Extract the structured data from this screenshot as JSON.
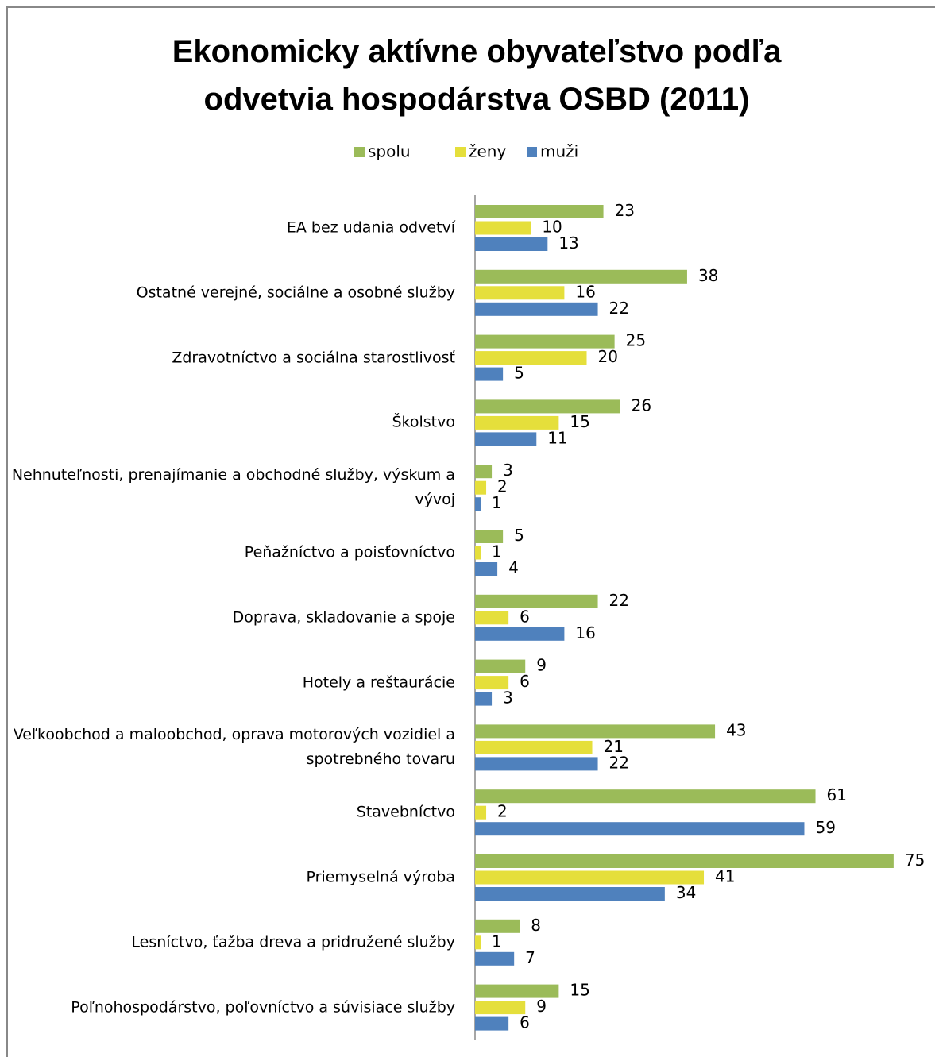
{
  "chart_data": {
    "type": "bar",
    "orientation": "horizontal",
    "title": "Ekonomicky aktívne obyvateľstvo podľa odvetvia hospodárstva  OSBD (2011)",
    "categories": [
      "EA bez udania odvetví",
      "Ostatné verejné, sociálne a osobné služby",
      "Zdravotníctvo a sociálna starostlivosť",
      "Školstvo",
      "Nehnuteľnosti, prenajímanie a obchodné služby, výskum a vývoj",
      "Peňažníctvo a poisťovníctvo",
      "Doprava, skladovanie a spoje",
      "Hotely a reštaurácie",
      "Veľkoobchod a maloobchod, oprava motorových vozidiel a spotrebného tovaru",
      "Stavebníctvo",
      "Priemyselná výroba",
      "Lesníctvo, ťažba dreva a pridružené služby",
      "Poľnohospodárstvo, poľovníctvo a súvisiace služby"
    ],
    "series": [
      {
        "name": "spolu",
        "color": "#9bbb59",
        "values": [
          23,
          38,
          25,
          26,
          3,
          5,
          22,
          9,
          43,
          61,
          75,
          8,
          15
        ]
      },
      {
        "name": "ženy",
        "color": "#e5df3b",
        "values": [
          10,
          16,
          20,
          15,
          2,
          1,
          6,
          6,
          21,
          2,
          41,
          1,
          9
        ]
      },
      {
        "name": "muži",
        "color": "#4f81bd",
        "values": [
          13,
          22,
          5,
          11,
          1,
          4,
          16,
          3,
          22,
          59,
          34,
          7,
          6
        ]
      }
    ],
    "xlim": [
      0,
      80
    ],
    "legend": "top"
  }
}
